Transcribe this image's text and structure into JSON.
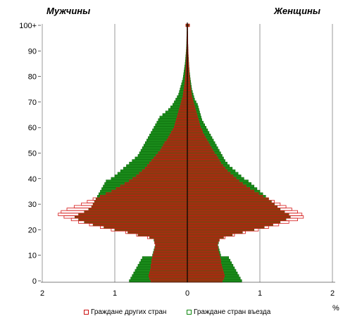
{
  "chart_data": {
    "type": "bar",
    "orientation": "horizontal-pyramid",
    "left_title": "Мужчины",
    "right_title": "Женщины",
    "unit": "%",
    "x_ticks": [
      "2",
      "1",
      "0",
      "1",
      "2"
    ],
    "xlim": [
      -2,
      2
    ],
    "y_ticks": [
      "0",
      "10",
      "20",
      "30",
      "40",
      "50",
      "60",
      "70",
      "80",
      "90",
      "100+"
    ],
    "ages": [
      0,
      1,
      2,
      3,
      4,
      5,
      6,
      7,
      8,
      9,
      10,
      11,
      12,
      13,
      14,
      15,
      16,
      17,
      18,
      19,
      20,
      21,
      22,
      23,
      24,
      25,
      26,
      27,
      28,
      29,
      30,
      31,
      32,
      33,
      34,
      35,
      36,
      37,
      38,
      39,
      40,
      41,
      42,
      43,
      44,
      45,
      46,
      47,
      48,
      49,
      50,
      51,
      52,
      53,
      54,
      55,
      56,
      57,
      58,
      59,
      60,
      61,
      62,
      63,
      64,
      65,
      66,
      67,
      68,
      69,
      70,
      71,
      72,
      73,
      74,
      75,
      76,
      77,
      78,
      79,
      80,
      81,
      82,
      83,
      84,
      85,
      86,
      87,
      88,
      89,
      90,
      91,
      92,
      93,
      94,
      95,
      96,
      97,
      98,
      99,
      100
    ],
    "series": [
      {
        "name": "Граждане других стран",
        "color": "#cc1111",
        "male": [
          0.5,
          0.52,
          0.53,
          0.52,
          0.51,
          0.5,
          0.5,
          0.49,
          0.49,
          0.48,
          0.47,
          0.46,
          0.45,
          0.44,
          0.44,
          0.45,
          0.45,
          0.55,
          0.7,
          0.85,
          1.05,
          1.2,
          1.35,
          1.5,
          1.6,
          1.7,
          1.78,
          1.74,
          1.66,
          1.56,
          1.46,
          1.38,
          1.3,
          1.2,
          1.12,
          1.04,
          0.98,
          0.92,
          0.86,
          0.8,
          0.75,
          0.7,
          0.66,
          0.62,
          0.58,
          0.55,
          0.52,
          0.49,
          0.46,
          0.43,
          0.4,
          0.37,
          0.35,
          0.33,
          0.31,
          0.28,
          0.26,
          0.24,
          0.22,
          0.2,
          0.18,
          0.17,
          0.16,
          0.15,
          0.14,
          0.13,
          0.12,
          0.11,
          0.1,
          0.09,
          0.08,
          0.07,
          0.06,
          0.055,
          0.05,
          0.045,
          0.04,
          0.035,
          0.03,
          0.028,
          0.025,
          0.022,
          0.02,
          0.018,
          0.016,
          0.014,
          0.012,
          0.011,
          0.01,
          0.009,
          0.008,
          0.007,
          0.006,
          0.005,
          0.005,
          0.004,
          0.004,
          0.003,
          0.003,
          0.003,
          0.02
        ],
        "female": [
          0.48,
          0.5,
          0.51,
          0.5,
          0.49,
          0.48,
          0.47,
          0.46,
          0.46,
          0.45,
          0.44,
          0.43,
          0.42,
          0.42,
          0.41,
          0.42,
          0.44,
          0.52,
          0.65,
          0.8,
          0.98,
          1.12,
          1.26,
          1.4,
          1.52,
          1.6,
          1.58,
          1.52,
          1.44,
          1.36,
          1.28,
          1.2,
          1.12,
          1.04,
          0.98,
          0.92,
          0.86,
          0.81,
          0.76,
          0.71,
          0.67,
          0.63,
          0.59,
          0.55,
          0.52,
          0.49,
          0.46,
          0.44,
          0.42,
          0.4,
          0.37,
          0.35,
          0.33,
          0.31,
          0.29,
          0.27,
          0.25,
          0.23,
          0.21,
          0.2,
          0.18,
          0.17,
          0.16,
          0.15,
          0.14,
          0.13,
          0.12,
          0.11,
          0.1,
          0.09,
          0.08,
          0.07,
          0.06,
          0.055,
          0.05,
          0.045,
          0.04,
          0.035,
          0.032,
          0.03,
          0.027,
          0.024,
          0.022,
          0.02,
          0.018,
          0.016,
          0.014,
          0.012,
          0.011,
          0.01,
          0.009,
          0.008,
          0.007,
          0.006,
          0.006,
          0.005,
          0.005,
          0.004,
          0.004,
          0.004,
          0.03
        ]
      },
      {
        "name": "Граждане стран въезда",
        "color": "#118811",
        "male": [
          0.8,
          0.78,
          0.76,
          0.74,
          0.72,
          0.7,
          0.68,
          0.66,
          0.64,
          0.62,
          0.48,
          0.47,
          0.46,
          0.45,
          0.44,
          0.45,
          0.46,
          0.52,
          0.68,
          0.82,
          1.0,
          1.15,
          1.3,
          1.42,
          1.5,
          1.55,
          1.5,
          1.42,
          1.36,
          1.32,
          1.3,
          1.28,
          1.26,
          1.24,
          1.22,
          1.2,
          1.18,
          1.16,
          1.14,
          1.12,
          1.05,
          1.0,
          0.96,
          0.92,
          0.88,
          0.84,
          0.8,
          0.76,
          0.72,
          0.68,
          0.66,
          0.64,
          0.62,
          0.6,
          0.58,
          0.56,
          0.54,
          0.52,
          0.5,
          0.48,
          0.46,
          0.44,
          0.42,
          0.4,
          0.38,
          0.34,
          0.3,
          0.26,
          0.23,
          0.2,
          0.18,
          0.16,
          0.14,
          0.12,
          0.11,
          0.1,
          0.09,
          0.08,
          0.07,
          0.06,
          0.055,
          0.05,
          0.045,
          0.04,
          0.035,
          0.03,
          0.027,
          0.024,
          0.021,
          0.018,
          0.015,
          0.013,
          0.011,
          0.01,
          0.009,
          0.008,
          0.007,
          0.006,
          0.005,
          0.005,
          0.02
        ],
        "female": [
          0.75,
          0.73,
          0.71,
          0.69,
          0.67,
          0.65,
          0.63,
          0.61,
          0.59,
          0.57,
          0.46,
          0.45,
          0.44,
          0.43,
          0.42,
          0.43,
          0.44,
          0.5,
          0.62,
          0.76,
          0.92,
          1.06,
          1.18,
          1.28,
          1.36,
          1.42,
          1.4,
          1.34,
          1.28,
          1.24,
          1.2,
          1.16,
          1.12,
          1.08,
          1.04,
          1.0,
          0.96,
          0.92,
          0.88,
          0.84,
          0.78,
          0.74,
          0.7,
          0.66,
          0.62,
          0.58,
          0.55,
          0.52,
          0.5,
          0.48,
          0.46,
          0.44,
          0.42,
          0.4,
          0.38,
          0.36,
          0.34,
          0.32,
          0.3,
          0.28,
          0.26,
          0.24,
          0.22,
          0.2,
          0.19,
          0.18,
          0.17,
          0.16,
          0.15,
          0.14,
          0.12,
          0.1,
          0.09,
          0.08,
          0.07,
          0.06,
          0.055,
          0.05,
          0.045,
          0.04,
          0.036,
          0.032,
          0.028,
          0.025,
          0.022,
          0.02,
          0.018,
          0.016,
          0.014,
          0.012,
          0.01,
          0.009,
          0.008,
          0.007,
          0.006,
          0.006,
          0.005,
          0.005,
          0.004,
          0.004,
          0.03
        ]
      }
    ],
    "grid": true,
    "legend_position": "bottom"
  }
}
